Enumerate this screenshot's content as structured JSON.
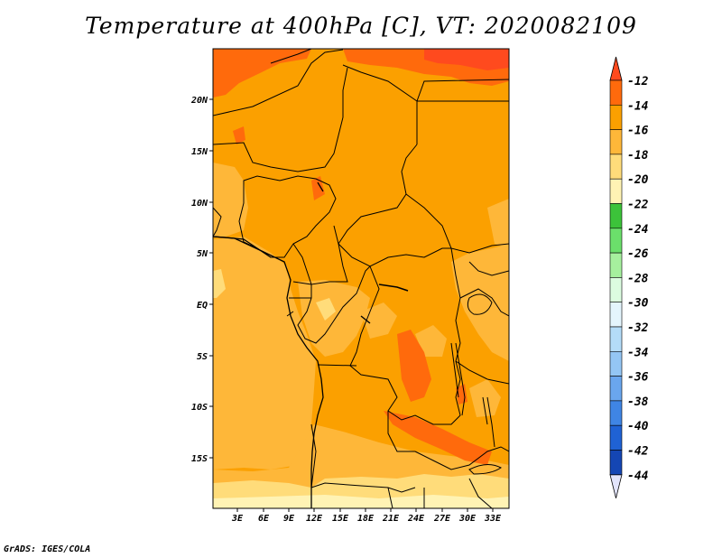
{
  "title": "Temperature at 400hPa [C], VT: 2020082109",
  "credit": "GrADS: IGES/COLA",
  "map": {
    "lat_labels": [
      "20N",
      "15N",
      "10N",
      "5N",
      "EQ",
      "5S",
      "10S",
      "15S"
    ],
    "lon_labels": [
      "3E",
      "6E",
      "9E",
      "12E",
      "15E",
      "18E",
      "21E",
      "24E",
      "27E",
      "30E",
      "33E"
    ]
  },
  "colorbar": {
    "labels": [
      "-12",
      "-14",
      "-16",
      "-18",
      "-20",
      "-22",
      "-24",
      "-26",
      "-28",
      "-30",
      "-32",
      "-34",
      "-36",
      "-38",
      "-40",
      "-42",
      "-44"
    ],
    "colors": {
      "above_-12": "#ff4a1e",
      "-14_to_-12": "#ff6a0c",
      "-16_to_-14": "#fba000",
      "-18_to_-16": "#feb739",
      "-20_to_-18": "#ffdc7a",
      "-22_to_-20": "#fff3b4",
      "-24_to_-22": "#3cc33a",
      "-26_to_-24": "#6bdf6b",
      "-28_to_-26": "#a6f09e",
      "-30_to_-28": "#dcfce0",
      "-32_to_-30": "#e4f5fd",
      "-34_to_-32": "#b4dcf8",
      "-36_to_-34": "#94c6f4",
      "-38_to_-36": "#6aa6ee",
      "-40_to_-38": "#3f85e4",
      "-42_to_-40": "#1f62d4",
      "-44_to_-42": "#1446b4",
      "below_-44": "#0c1a7a",
      "lower_arrow": "#e2e4fb"
    }
  }
}
